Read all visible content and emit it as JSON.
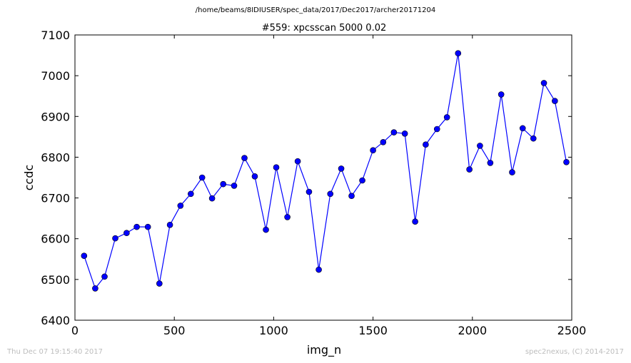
{
  "header": {
    "suptitle": "/home/beams/8IDIUSER/spec_data/2017/Dec2017/archer20171204"
  },
  "footer": {
    "timestamp": "Thu Dec 07 19:15:40 2017",
    "credit": "spec2nexus, (C) 2014-2017"
  },
  "chart_data": {
    "type": "line",
    "title": "#559: xpcsscan 5000 0.02",
    "xlabel": "img_n",
    "ylabel": "ccdc",
    "xlim": [
      0,
      2500
    ],
    "ylim": [
      6400,
      7100
    ],
    "xticks": [
      "0",
      "500",
      "1000",
      "1500",
      "2000",
      "2500"
    ],
    "yticks": [
      "6400",
      "6500",
      "6600",
      "6700",
      "6800",
      "6900",
      "7000",
      "7100"
    ],
    "grid": false,
    "series": [
      {
        "line_color": "#0000ff",
        "marker": "circle",
        "x": [
          46,
          102,
          149,
          203,
          260,
          311,
          367,
          425,
          478,
          531,
          583,
          640,
          690,
          746,
          801,
          853,
          905,
          961,
          1013,
          1069,
          1121,
          1178,
          1227,
          1285,
          1340,
          1392,
          1446,
          1500,
          1551,
          1605,
          1660,
          1712,
          1765,
          1822,
          1872,
          1928,
          1985,
          2038,
          2090,
          2145,
          2200,
          2253,
          2307,
          2360,
          2415,
          2473
        ],
        "y": [
          6558,
          6478,
          6507,
          6601,
          6614,
          6629,
          6629,
          6490,
          6634,
          6681,
          6710,
          6750,
          6699,
          6734,
          6730,
          6798,
          6753,
          6622,
          6775,
          6653,
          6790,
          6715,
          6524,
          6710,
          6772,
          6705,
          6743,
          6817,
          6837,
          6861,
          6858,
          6642,
          6831,
          6869,
          6898,
          7055,
          6770,
          6828,
          6786,
          6954,
          6763,
          6871,
          6846,
          6982,
          6938,
          6788
        ]
      }
    ]
  }
}
